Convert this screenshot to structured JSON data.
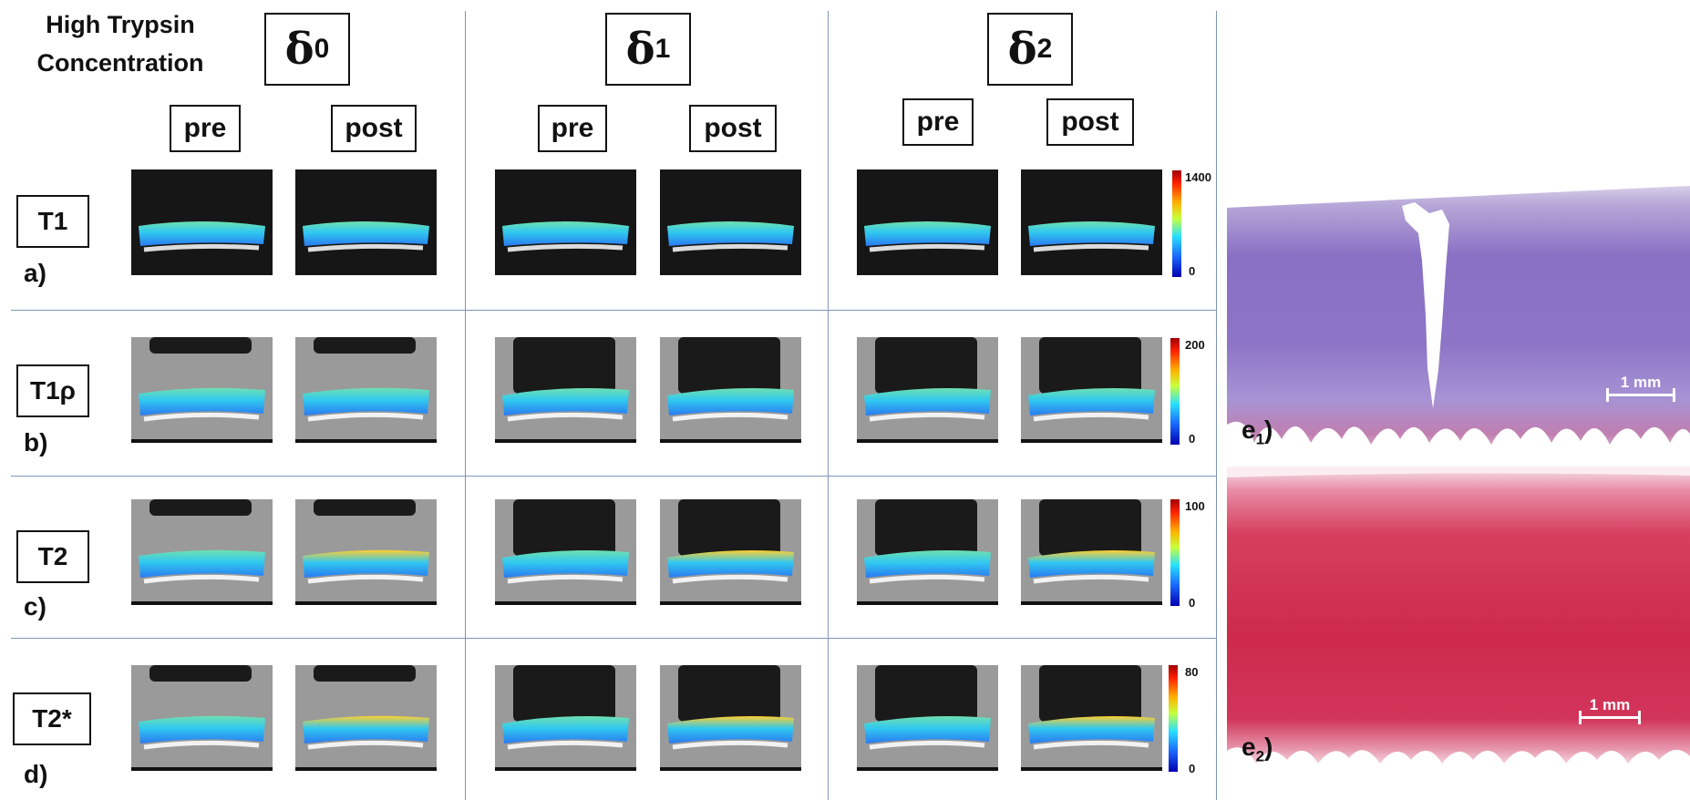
{
  "title_line1": "High Trypsin",
  "title_line2": "Concentration",
  "groups": [
    {
      "symbol": "δ",
      "sub": "0"
    },
    {
      "symbol": "δ",
      "sub": "1"
    },
    {
      "symbol": "δ",
      "sub": "2"
    }
  ],
  "columns": {
    "pre": "pre",
    "post": "post"
  },
  "rows": [
    {
      "name": "T1",
      "label": "a)",
      "cmax": "1400",
      "cmin": "0"
    },
    {
      "name": "T1ρ",
      "label": "b)",
      "cmax": "200",
      "cmin": "0"
    },
    {
      "name": "T2",
      "label": "c)",
      "cmax": "100",
      "cmin": "0"
    },
    {
      "name": "T2*",
      "label": "d)",
      "cmax": "80",
      "cmin": "0"
    }
  ],
  "histology": [
    {
      "letter": "e",
      "sub": "1",
      "close": ")",
      "scale": "1 mm",
      "color": "#8a6cc0"
    },
    {
      "letter": "e",
      "sub": "2",
      "close": ")",
      "scale": "1 mm",
      "color": "#d0304e"
    }
  ]
}
